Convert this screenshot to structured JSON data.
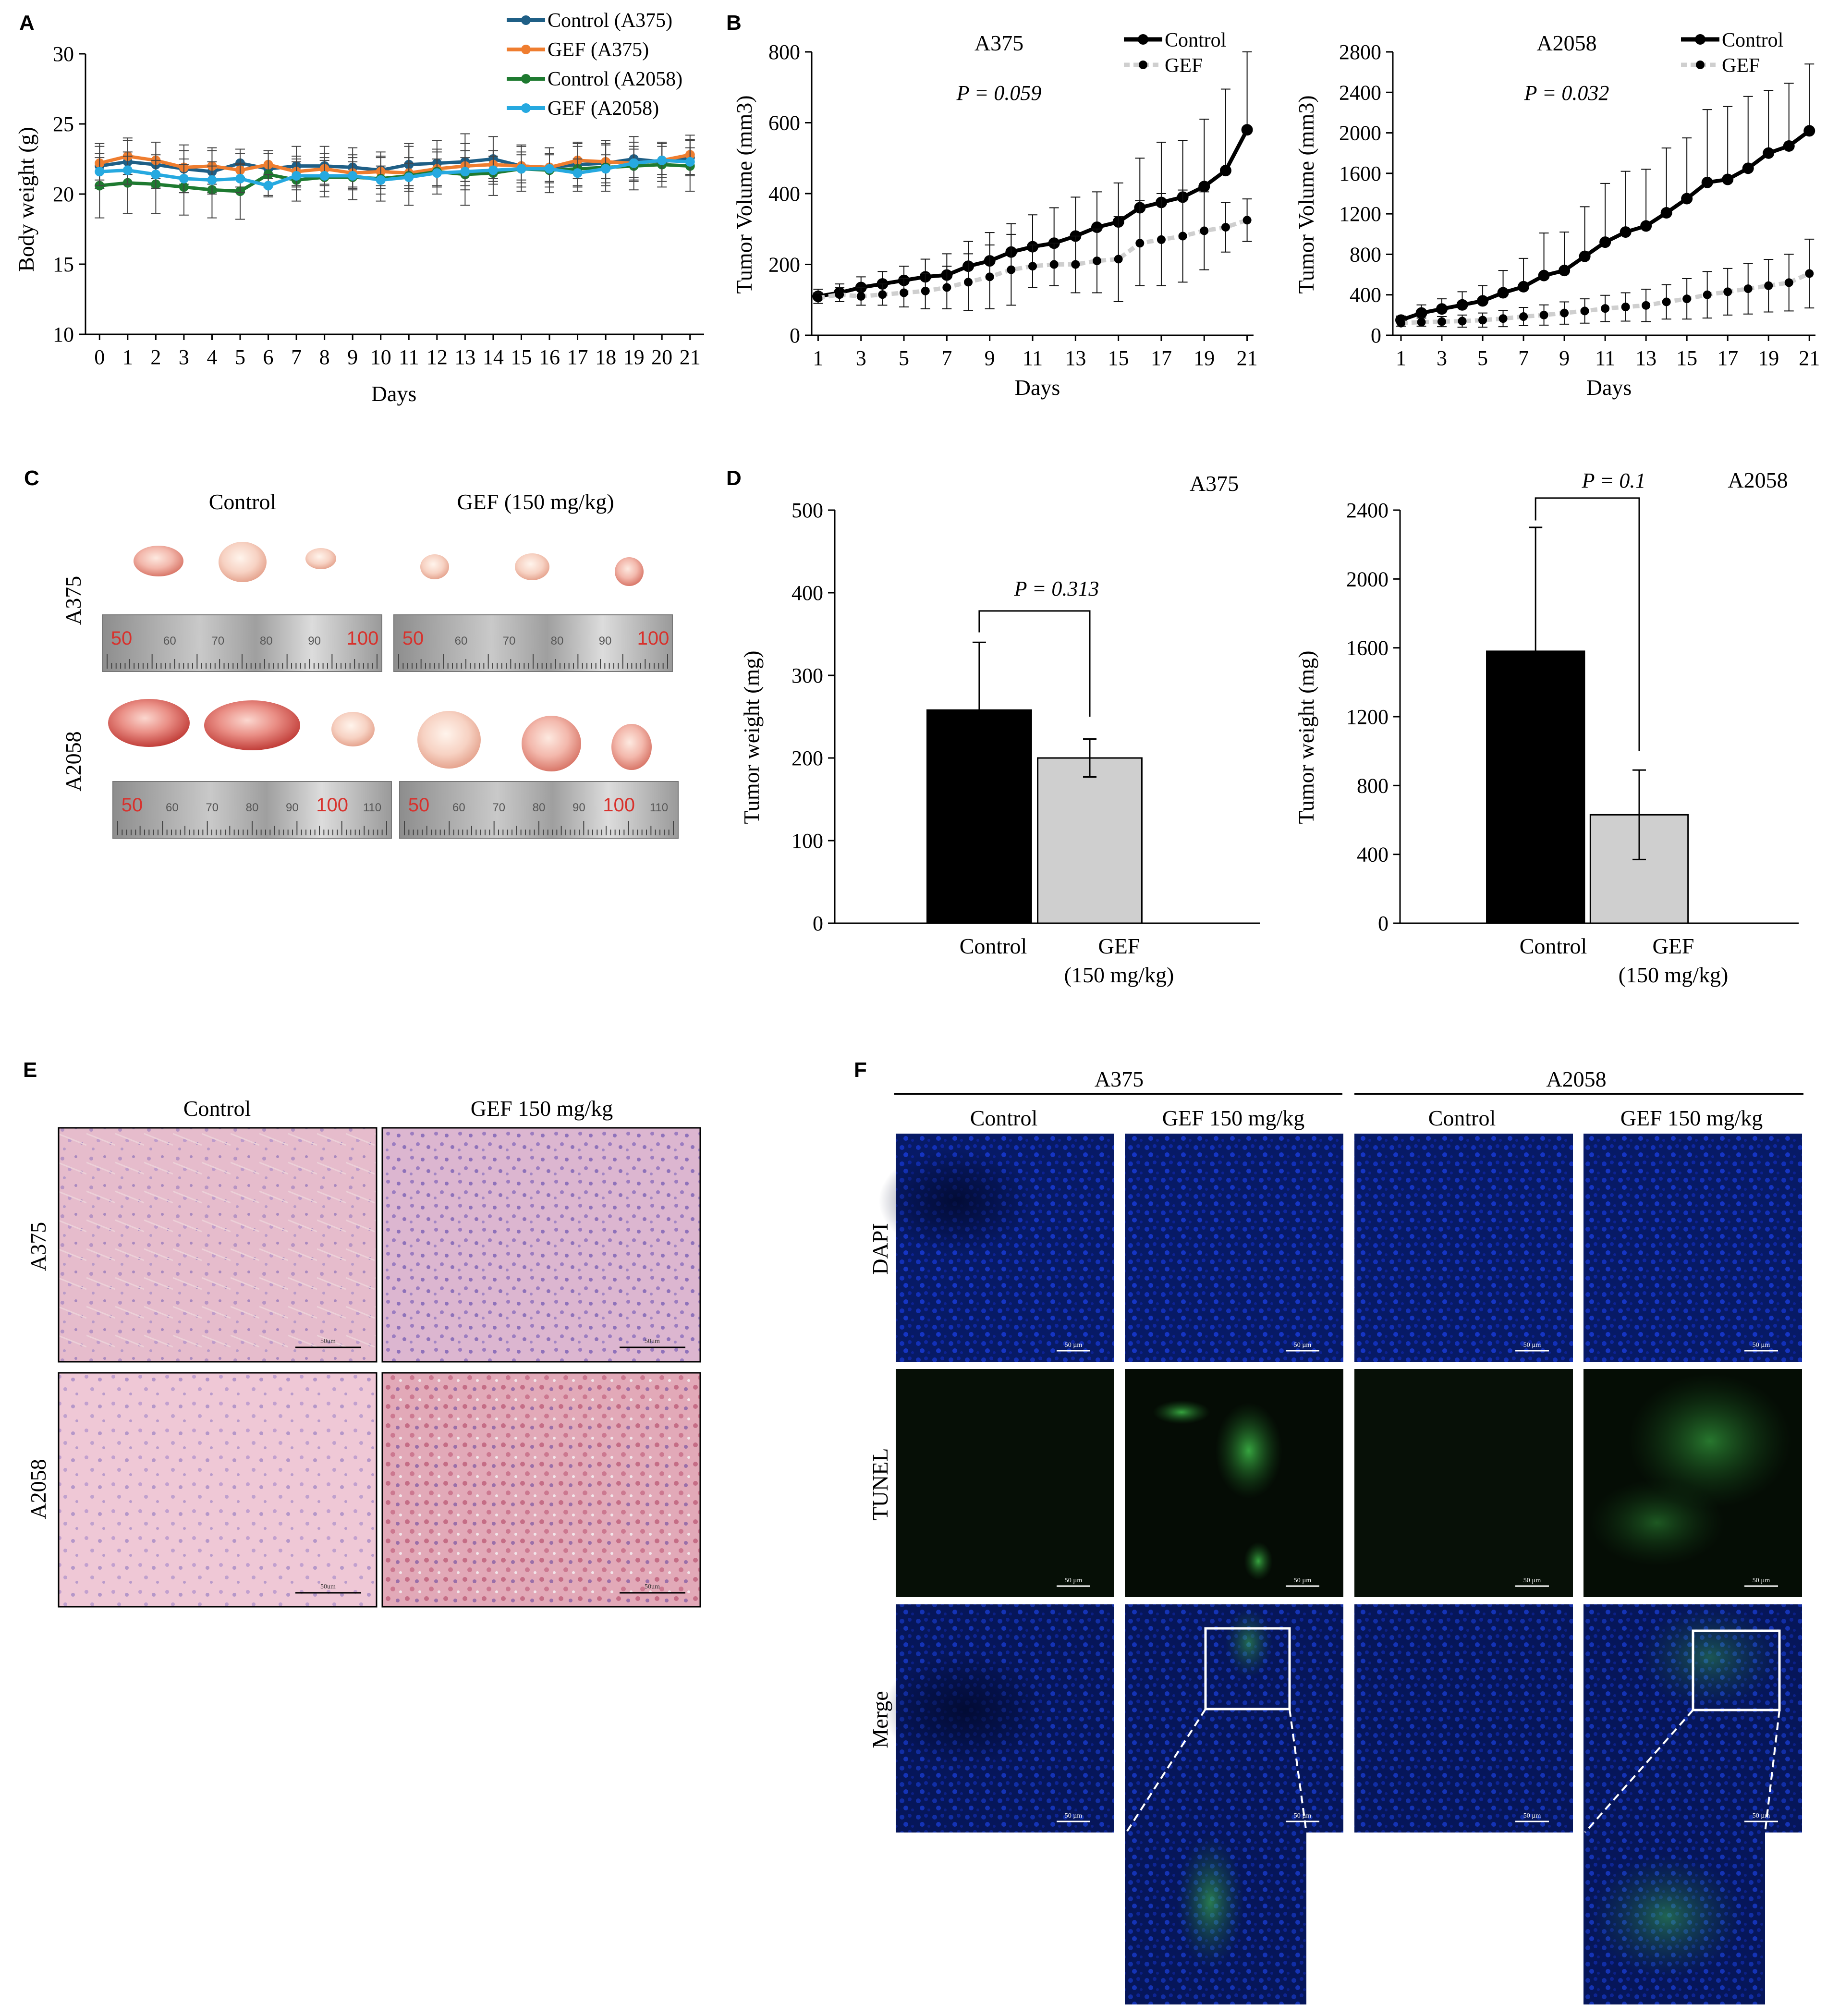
{
  "panels": {
    "A": "A",
    "B": "B",
    "C": "C",
    "D": "D",
    "E": "E",
    "F": "F"
  },
  "colors": {
    "control_a375": "#1f5f86",
    "gef_a375": "#ef7d2f",
    "control_a2058": "#1e7a30",
    "gef_a2058": "#26a9e0",
    "control": "#000000",
    "gef": "#cfcfcf"
  },
  "panelA": {
    "ylabel": "Body weight (g)",
    "xlabel": "Days",
    "yticks": [
      "10",
      "15",
      "20",
      "25",
      "30"
    ],
    "xticks": [
      "0",
      "1",
      "2",
      "3",
      "4",
      "5",
      "6",
      "7",
      "8",
      "9",
      "10",
      "11",
      "12",
      "13",
      "14",
      "15",
      "16",
      "17",
      "18",
      "19",
      "20",
      "21"
    ],
    "legend": [
      "Control (A375)",
      "GEF (A375)",
      "Control (A2058)",
      "GEF (A2058)"
    ]
  },
  "panelB": {
    "left": {
      "title": "A375",
      "pvalue": "P = 0.059",
      "ylabel": "Tumor Volume (mm3)",
      "xlabel": "Days",
      "yticks": [
        "0",
        "200",
        "400",
        "600",
        "800"
      ],
      "xticks": [
        "1",
        "3",
        "5",
        "7",
        "9",
        "11",
        "13",
        "15",
        "17",
        "19",
        "21"
      ],
      "legend": [
        "Control",
        "GEF"
      ]
    },
    "right": {
      "title": "A2058",
      "pvalue": "P = 0.032",
      "ylabel": "Tumor Volume (mm3)",
      "xlabel": "Days",
      "yticks": [
        "0",
        "400",
        "800",
        "1200",
        "1600",
        "2000",
        "2400",
        "2800"
      ],
      "xticks": [
        "1",
        "3",
        "5",
        "7",
        "9",
        "11",
        "13",
        "15",
        "17",
        "19",
        "21"
      ],
      "legend": [
        "Control",
        "GEF"
      ]
    }
  },
  "panelC": {
    "col_control": "Control",
    "col_gef": "GEF (150 mg/kg)",
    "row_a375": "A375",
    "row_a2058": "A2058",
    "ruler_labels": [
      "50",
      "60",
      "70",
      "80",
      "90",
      "100",
      "110"
    ]
  },
  "panelD": {
    "left": {
      "title": "A375",
      "pvalue": "P = 0.313",
      "ylabel": "Tumor weight (mg)",
      "yticks": [
        "0",
        "100",
        "200",
        "300",
        "400",
        "500"
      ]
    },
    "right": {
      "title": "A2058",
      "pvalue": "P = 0.1",
      "ylabel": "Tumor weight (mg)",
      "yticks": [
        "0",
        "400",
        "800",
        "1200",
        "1600",
        "2000",
        "2400"
      ]
    },
    "cat_control": "Control",
    "cat_gef_1": "GEF",
    "cat_gef_2": "(150 mg/kg)"
  },
  "panelE": {
    "col_control": "Control",
    "col_gef": "GEF 150 mg/kg",
    "row_a375": "A375",
    "row_a2058": "A2058",
    "scale": "50um"
  },
  "panelF": {
    "group_a375": "A375",
    "group_a2058": "A2058",
    "col_control": "Control",
    "col_gef": "GEF 150 mg/kg",
    "row_dapi": "DAPI",
    "row_tunel": "TUNEL",
    "row_merge": "Merge",
    "scale": "50 µm"
  },
  "chart_data": [
    {
      "type": "line",
      "title": "",
      "xlabel": "Days",
      "ylabel": "Body weight (g)",
      "ylim": [
        10,
        30
      ],
      "x": [
        0,
        1,
        2,
        3,
        4,
        5,
        6,
        7,
        8,
        9,
        10,
        11,
        12,
        13,
        14,
        15,
        16,
        17,
        18,
        19,
        20,
        21
      ],
      "series": [
        {
          "name": "Control (A375)",
          "values": [
            22.0,
            22.3,
            22.1,
            21.8,
            21.6,
            22.2,
            21.8,
            22.0,
            22.0,
            21.9,
            21.7,
            22.1,
            22.2,
            22.3,
            22.5,
            22.0,
            21.9,
            22.1,
            22.2,
            22.5,
            22.3,
            22.6
          ],
          "err": [
            1.6,
            1.5,
            1.6,
            1.7,
            1.5,
            1.0,
            1.3,
            1.4,
            1.4,
            1.4,
            1.3,
            1.5,
            1.6,
            2.0,
            1.6,
            1.5,
            1.4,
            1.5,
            1.6,
            1.6,
            1.4,
            1.3
          ]
        },
        {
          "name": "GEF (A375)",
          "values": [
            22.2,
            22.7,
            22.4,
            21.9,
            22.0,
            21.7,
            22.1,
            21.6,
            21.8,
            21.5,
            21.6,
            21.5,
            21.8,
            22.0,
            22.1,
            22.0,
            21.9,
            22.4,
            22.3,
            22.2,
            22.4,
            22.8
          ],
          "err": [
            1.2,
            1.3,
            1.3,
            1.2,
            1.3,
            1.2,
            1.0,
            1.1,
            1.1,
            1.1,
            1.0,
            1.1,
            1.2,
            1.1,
            1.0,
            1.0,
            1.0,
            1.3,
            1.2,
            1.2,
            1.2,
            1.4
          ]
        },
        {
          "name": "Control (A2058)",
          "values": [
            20.6,
            20.8,
            20.7,
            20.5,
            20.3,
            20.2,
            21.4,
            21.0,
            21.2,
            21.2,
            21.1,
            21.3,
            21.6,
            21.4,
            21.5,
            21.8,
            21.7,
            21.8,
            21.9,
            22.0,
            22.1,
            22.0
          ],
          "err": [
            2.3,
            2.2,
            2.1,
            2.0,
            2.0,
            2.0,
            1.5,
            1.5,
            1.4,
            1.6,
            1.6,
            2.1,
            1.6,
            2.2,
            1.6,
            1.6,
            1.6,
            1.6,
            1.7,
            1.7,
            1.6,
            1.8
          ]
        },
        {
          "name": "GEF (A2058)",
          "values": [
            21.6,
            21.7,
            21.4,
            21.1,
            21.0,
            21.1,
            20.6,
            21.3,
            21.3,
            21.3,
            21.0,
            21.2,
            21.5,
            21.6,
            21.7,
            21.8,
            21.8,
            21.5,
            21.8,
            22.2,
            22.4,
            22.3
          ],
          "err": [
            1.0,
            1.0,
            1.0,
            1.0,
            1.0,
            1.0,
            0.8,
            1.0,
            1.1,
            1.0,
            1.0,
            1.0,
            1.0,
            1.0,
            1.0,
            1.0,
            1.0,
            1.0,
            1.0,
            1.0,
            1.0,
            1.0
          ]
        }
      ]
    },
    {
      "type": "line",
      "title": "A375",
      "xlabel": "Days",
      "ylabel": "Tumor Volume (mm3)",
      "ylim": [
        0,
        800
      ],
      "x": [
        1,
        2,
        3,
        4,
        5,
        6,
        7,
        8,
        9,
        10,
        11,
        12,
        13,
        14,
        15,
        16,
        17,
        18,
        19,
        20,
        21
      ],
      "series": [
        {
          "name": "Control",
          "values": [
            110,
            120,
            135,
            145,
            155,
            165,
            170,
            195,
            210,
            235,
            250,
            260,
            280,
            305,
            320,
            360,
            375,
            390,
            420,
            465,
            580
          ],
          "err": [
            20,
            25,
            30,
            35,
            40,
            50,
            60,
            70,
            80,
            80,
            90,
            100,
            110,
            100,
            110,
            140,
            170,
            160,
            190,
            230,
            220
          ]
        },
        {
          "name": "GEF",
          "values": [
            105,
            115,
            110,
            115,
            120,
            125,
            135,
            150,
            165,
            185,
            195,
            200,
            200,
            210,
            215,
            260,
            270,
            280,
            295,
            305,
            325
          ],
          "err": [
            15,
            20,
            25,
            30,
            40,
            50,
            60,
            80,
            90,
            100,
            60,
            60,
            80,
            90,
            120,
            120,
            130,
            130,
            110,
            70,
            60
          ]
        }
      ]
    },
    {
      "type": "line",
      "title": "A2058",
      "xlabel": "Days",
      "ylabel": "Tumor Volume (mm3)",
      "ylim": [
        0,
        2800
      ],
      "x": [
        1,
        2,
        3,
        4,
        5,
        6,
        7,
        8,
        9,
        10,
        11,
        12,
        13,
        14,
        15,
        16,
        17,
        18,
        19,
        20,
        21
      ],
      "series": [
        {
          "name": "Control",
          "values": [
            150,
            220,
            260,
            300,
            340,
            420,
            480,
            590,
            640,
            780,
            920,
            1020,
            1080,
            1210,
            1350,
            1510,
            1540,
            1650,
            1800,
            1870,
            2020
          ],
          "err": [
            40,
            80,
            100,
            130,
            150,
            220,
            280,
            420,
            380,
            490,
            580,
            600,
            560,
            640,
            600,
            720,
            720,
            710,
            620,
            620,
            660
          ]
        },
        {
          "name": "GEF",
          "values": [
            120,
            130,
            135,
            140,
            150,
            165,
            185,
            200,
            220,
            240,
            265,
            280,
            295,
            330,
            360,
            400,
            430,
            460,
            490,
            520,
            610
          ],
          "err": [
            30,
            40,
            50,
            60,
            70,
            80,
            90,
            100,
            110,
            120,
            130,
            140,
            160,
            170,
            200,
            230,
            230,
            250,
            260,
            280,
            340
          ]
        }
      ]
    },
    {
      "type": "bar",
      "title": "A375",
      "xlabel": "",
      "ylabel": "Tumor weight (mg)",
      "ylim": [
        0,
        500
      ],
      "categories": [
        "Control",
        "GEF (150 mg/kg)"
      ],
      "values": [
        258,
        200
      ],
      "err": [
        82,
        23
      ],
      "annotation": "P = 0.313"
    },
    {
      "type": "bar",
      "title": "A2058",
      "xlabel": "",
      "ylabel": "Tumor weight (mg)",
      "ylim": [
        0,
        2400
      ],
      "categories": [
        "Control",
        "GEF (150 mg/kg)"
      ],
      "values": [
        1580,
        630
      ],
      "err": [
        720,
        260
      ],
      "annotation": "P = 0.1"
    }
  ]
}
